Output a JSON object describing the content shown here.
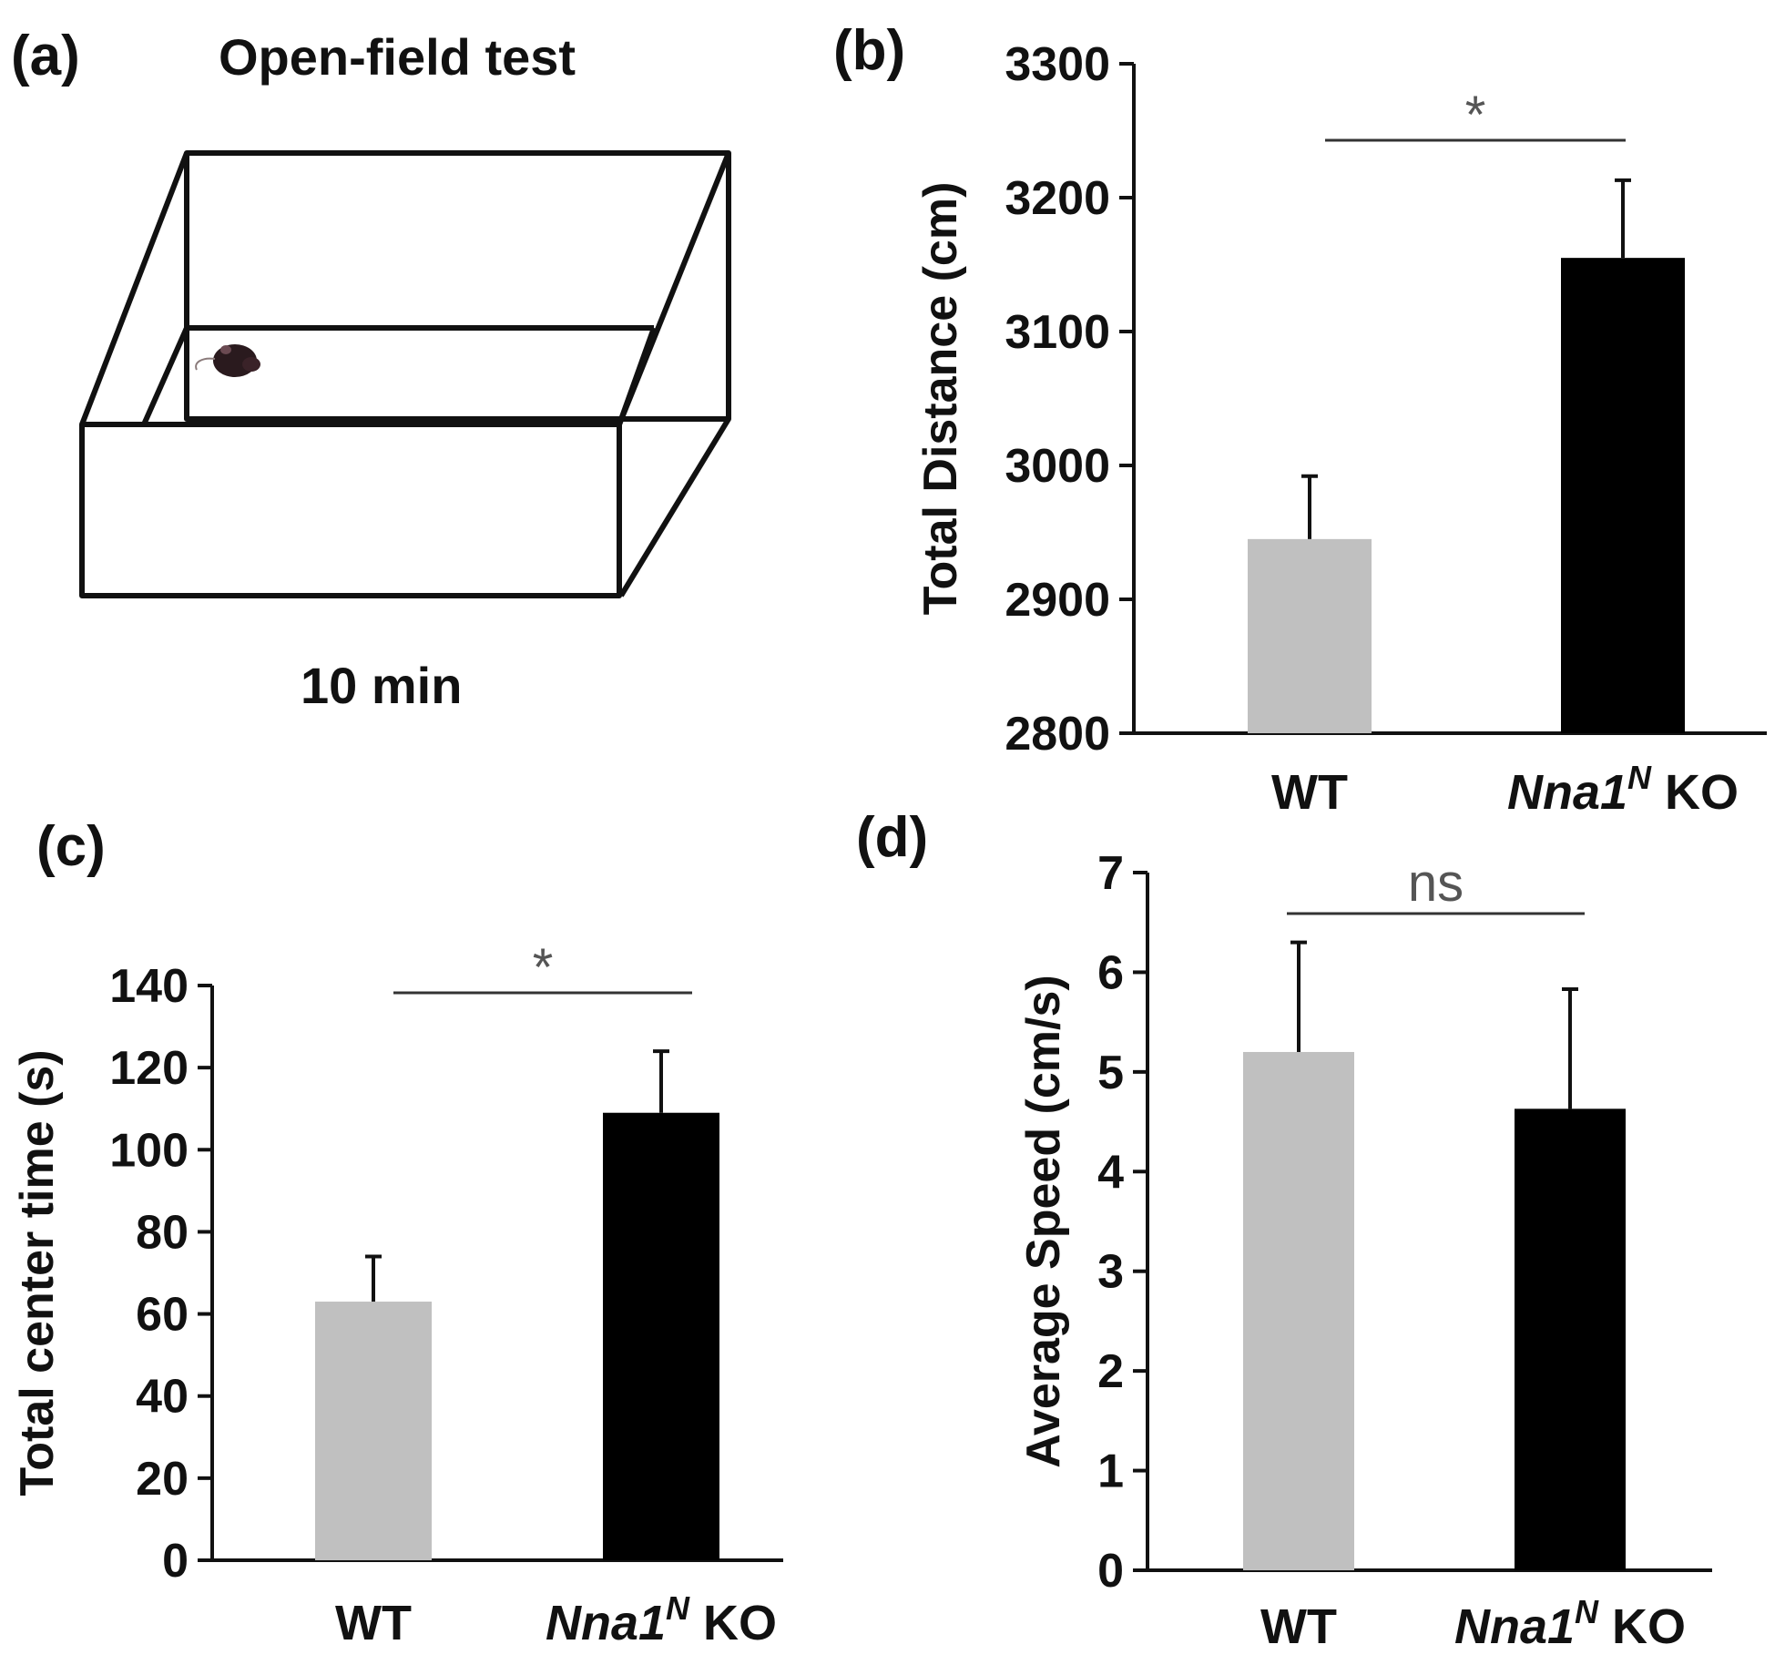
{
  "panels": {
    "a": {
      "label": "(a)",
      "title": "Open-field test",
      "caption": "10 min"
    },
    "b": {
      "label": "(b)"
    },
    "c": {
      "label": "(c)"
    },
    "d": {
      "label": "(d)"
    }
  },
  "chart_data": [
    {
      "panel": "b",
      "type": "bar",
      "categories": [
        "WT",
        "Nna1N KO"
      ],
      "category_labels": [
        {
          "main": "WT",
          "superscript": "",
          "suffix": ""
        },
        {
          "main": "Nna1",
          "superscript": "N",
          "suffix": " KO"
        }
      ],
      "values": [
        2945,
        3155
      ],
      "errors": [
        47,
        58
      ],
      "colors": [
        "#c0c0c0",
        "#000000"
      ],
      "ylabel": "Total Distance (cm)",
      "ylim": [
        2800,
        3300
      ],
      "yticks": [
        2800,
        2900,
        3000,
        3100,
        3200,
        3300
      ],
      "significance": "*"
    },
    {
      "panel": "c",
      "type": "bar",
      "categories": [
        "WT",
        "Nna1N KO"
      ],
      "category_labels": [
        {
          "main": "WT",
          "superscript": "",
          "suffix": ""
        },
        {
          "main": "Nna1",
          "superscript": "N",
          "suffix": " KO"
        }
      ],
      "values": [
        63,
        109
      ],
      "errors": [
        11,
        15
      ],
      "colors": [
        "#c0c0c0",
        "#000000"
      ],
      "ylabel": "Total center time (s)",
      "ylim": [
        0,
        140
      ],
      "yticks": [
        0,
        20,
        40,
        60,
        80,
        100,
        120,
        140
      ],
      "significance": "*"
    },
    {
      "panel": "d",
      "type": "bar",
      "categories": [
        "WT",
        "Nna1N KO"
      ],
      "category_labels": [
        {
          "main": "WT",
          "superscript": "",
          "suffix": ""
        },
        {
          "main": "Nna1",
          "superscript": "N",
          "suffix": " KO"
        }
      ],
      "values": [
        5.2,
        4.63
      ],
      "errors": [
        1.1,
        1.2
      ],
      "colors": [
        "#c0c0c0",
        "#000000"
      ],
      "ylabel": "Average  Speed (cm/s)",
      "ylim": [
        0,
        7
      ],
      "yticks": [
        0,
        1,
        2,
        3,
        4,
        5,
        6,
        7
      ],
      "significance": "ns"
    }
  ]
}
